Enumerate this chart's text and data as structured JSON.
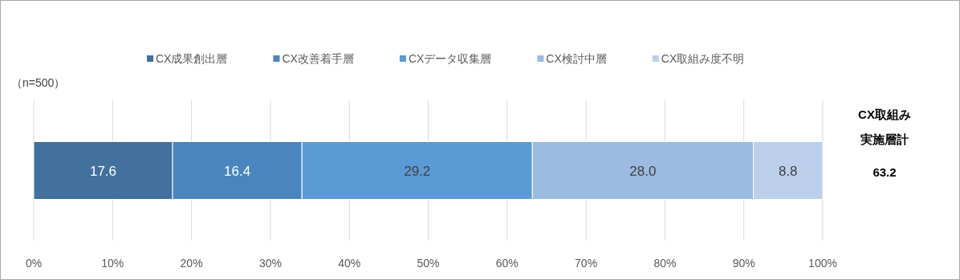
{
  "chart_data": {
    "type": "bar",
    "orientation": "horizontal",
    "stacked": true,
    "categories": [
      null
    ],
    "series": [
      {
        "name": "CX成果創出層",
        "color": "#41719c",
        "values": [
          17.6
        ],
        "value_labels": [
          "17.6"
        ]
      },
      {
        "name": "CX改善着手層",
        "color": "#4a86bd",
        "values": [
          16.4
        ],
        "value_labels": [
          "16.4"
        ]
      },
      {
        "name": "CXデータ収集層",
        "color": "#5b9bd5",
        "values": [
          29.2
        ],
        "value_labels": [
          "29.2"
        ]
      },
      {
        "name": "CX検討中層",
        "color": "#9bbbe0",
        "values": [
          28.0
        ],
        "value_labels": [
          "28.0"
        ]
      },
      {
        "name": "CX取組み度不明",
        "color": "#bdd0eb",
        "values": [
          8.8
        ],
        "value_labels": [
          "8.8"
        ]
      }
    ],
    "xlim": [
      0,
      100
    ],
    "xticks": [
      {
        "value": 0,
        "label": "0%"
      },
      {
        "value": 10,
        "label": "10%"
      },
      {
        "value": 20,
        "label": "20%"
      },
      {
        "value": 30,
        "label": "30%"
      },
      {
        "value": 40,
        "label": "40%"
      },
      {
        "value": 50,
        "label": "50%"
      },
      {
        "value": 60,
        "label": "60%"
      },
      {
        "value": 70,
        "label": "70%"
      },
      {
        "value": 80,
        "label": "80%"
      },
      {
        "value": 90,
        "label": "90%"
      },
      {
        "value": 100,
        "label": "100%"
      }
    ],
    "grid": "x",
    "legend": "top",
    "annotations": [
      "（n=500）",
      "CX取組み",
      "実施層計",
      "63.2"
    ]
  }
}
